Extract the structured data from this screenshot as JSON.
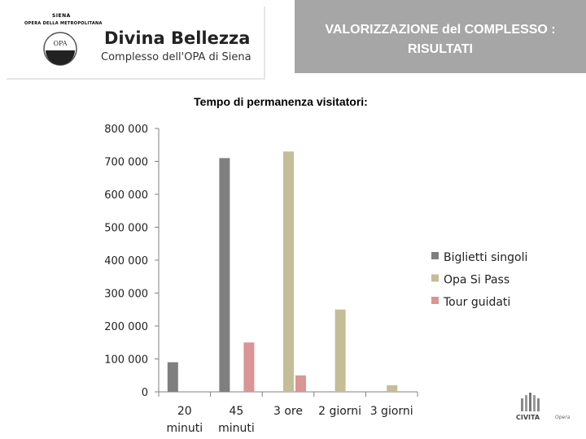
{
  "header": {
    "org_top": "SIENA",
    "org_sub": "OPERA DELLA METROPOLITANA",
    "brand_title": "Divina Bellezza",
    "brand_subtitle": "Complesso dell'OPA di Siena",
    "emblem_text": "OPA",
    "slide_title_line1": "VALORIZZAZIONE del COMPLESSO :",
    "slide_title_line2": "RISULTATI"
  },
  "footer": {
    "civita": "CIVITA",
    "opera": "Opera"
  },
  "colors": {
    "header_band": "#a6a6a6",
    "series1": "#7f7f7f",
    "series2": "#c4bd97",
    "series3": "#d99694"
  },
  "chart_data": {
    "type": "bar",
    "title": "Tempo di permanenza visitatori:",
    "categories": [
      [
        "20",
        "minuti"
      ],
      [
        "45",
        "minuti"
      ],
      [
        "3 ore"
      ],
      [
        "2 giorni"
      ],
      [
        "3 giorni"
      ]
    ],
    "series": [
      {
        "name": "Biglietti singoli",
        "color": "#7f7f7f",
        "values": [
          90000,
          710000,
          0,
          0,
          0
        ]
      },
      {
        "name": "Opa Si Pass",
        "color": "#c4bd97",
        "values": [
          0,
          0,
          730000,
          250000,
          20000
        ]
      },
      {
        "name": "Tour guidati",
        "color": "#d99694",
        "values": [
          0,
          150000,
          50000,
          0,
          0
        ]
      }
    ],
    "yticks": [
      "0",
      "100 000",
      "200 000",
      "300 000",
      "400 000",
      "500 000",
      "600 000",
      "700 000",
      "800 000"
    ],
    "ylim": [
      0,
      800000
    ],
    "grid": false,
    "legend": "right"
  }
}
